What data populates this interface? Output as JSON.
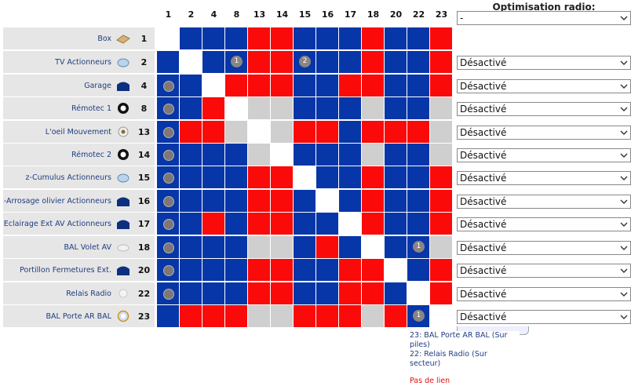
{
  "optimisation_label": "Optimisation radio:",
  "header_select": "-",
  "columns": [
    "1",
    "2",
    "4",
    "8",
    "13",
    "14",
    "15",
    "16",
    "17",
    "18",
    "20",
    "22",
    "23"
  ],
  "devices": [
    {
      "name": "Box",
      "num": "1",
      "icon": "box-icon",
      "option": ""
    },
    {
      "name": "TV Actionneurs",
      "num": "2",
      "icon": "actuator-icon",
      "option": "Désactivé"
    },
    {
      "name": "Garage",
      "num": "4",
      "icon": "garage-module-icon",
      "option": "Désactivé"
    },
    {
      "name": "Rémotec 1",
      "num": "8",
      "icon": "remote-icon",
      "option": "Désactivé"
    },
    {
      "name": "L'oeil Mouvement",
      "num": "13",
      "icon": "motion-sensor-icon",
      "option": "Désactivé"
    },
    {
      "name": "Rémotec 2",
      "num": "14",
      "icon": "remote-icon",
      "option": "Désactivé"
    },
    {
      "name": "z-Cumulus Actionneurs",
      "num": "15",
      "icon": "actuator-icon",
      "option": "Désactivé"
    },
    {
      "name": "x-Arrosage olivier Actionneurs",
      "num": "16",
      "icon": "module-icon",
      "option": "Désactivé"
    },
    {
      "name": "Eclairage Ext AV Actionneurs",
      "num": "17",
      "icon": "module-icon",
      "option": "Désactivé"
    },
    {
      "name": "BAL Volet AV",
      "num": "18",
      "icon": "sensor-icon",
      "option": "Désactivé"
    },
    {
      "name": "Portillon Fermetures Ext.",
      "num": "20",
      "icon": "module-icon",
      "option": "Désactivé"
    },
    {
      "name": "Relais Radio",
      "num": "22",
      "icon": "relay-icon",
      "option": "Désactivé"
    },
    {
      "name": "BAL Porte AR BAL",
      "num": "23",
      "icon": "ring-sensor-icon",
      "option": "Désactivé"
    }
  ],
  "matrix": [
    "wbbbrrbbbrbbr",
    "bwb1rr2bbrbbr",
    "dbwrrrbbrrbbr",
    "dbrwggbbbgbbg",
    "drrgwgrrbrrrg",
    "dbbbgwbbbgbbg",
    "dbbbrrwbbrbbr",
    "dbbbrrbwbrbbr",
    "dbrbrrbbwrbbr",
    "dbbbggbrbwb1g",
    "dbbbrrbbrrwbr",
    "dbbbrrbbrrbwr",
    "brrrggrrrgr1w"
  ],
  "tooltip": {
    "line1": "23: BAL Porte AR BAL (Sur piles)",
    "line2": "22: Relais Radio (Sur secteur)",
    "status": "Pas de lien"
  },
  "colors": {
    "blue": "#0736a8",
    "red": "#fb0a0a",
    "grey": "#cfcfcf",
    "white": "#ffffff"
  }
}
